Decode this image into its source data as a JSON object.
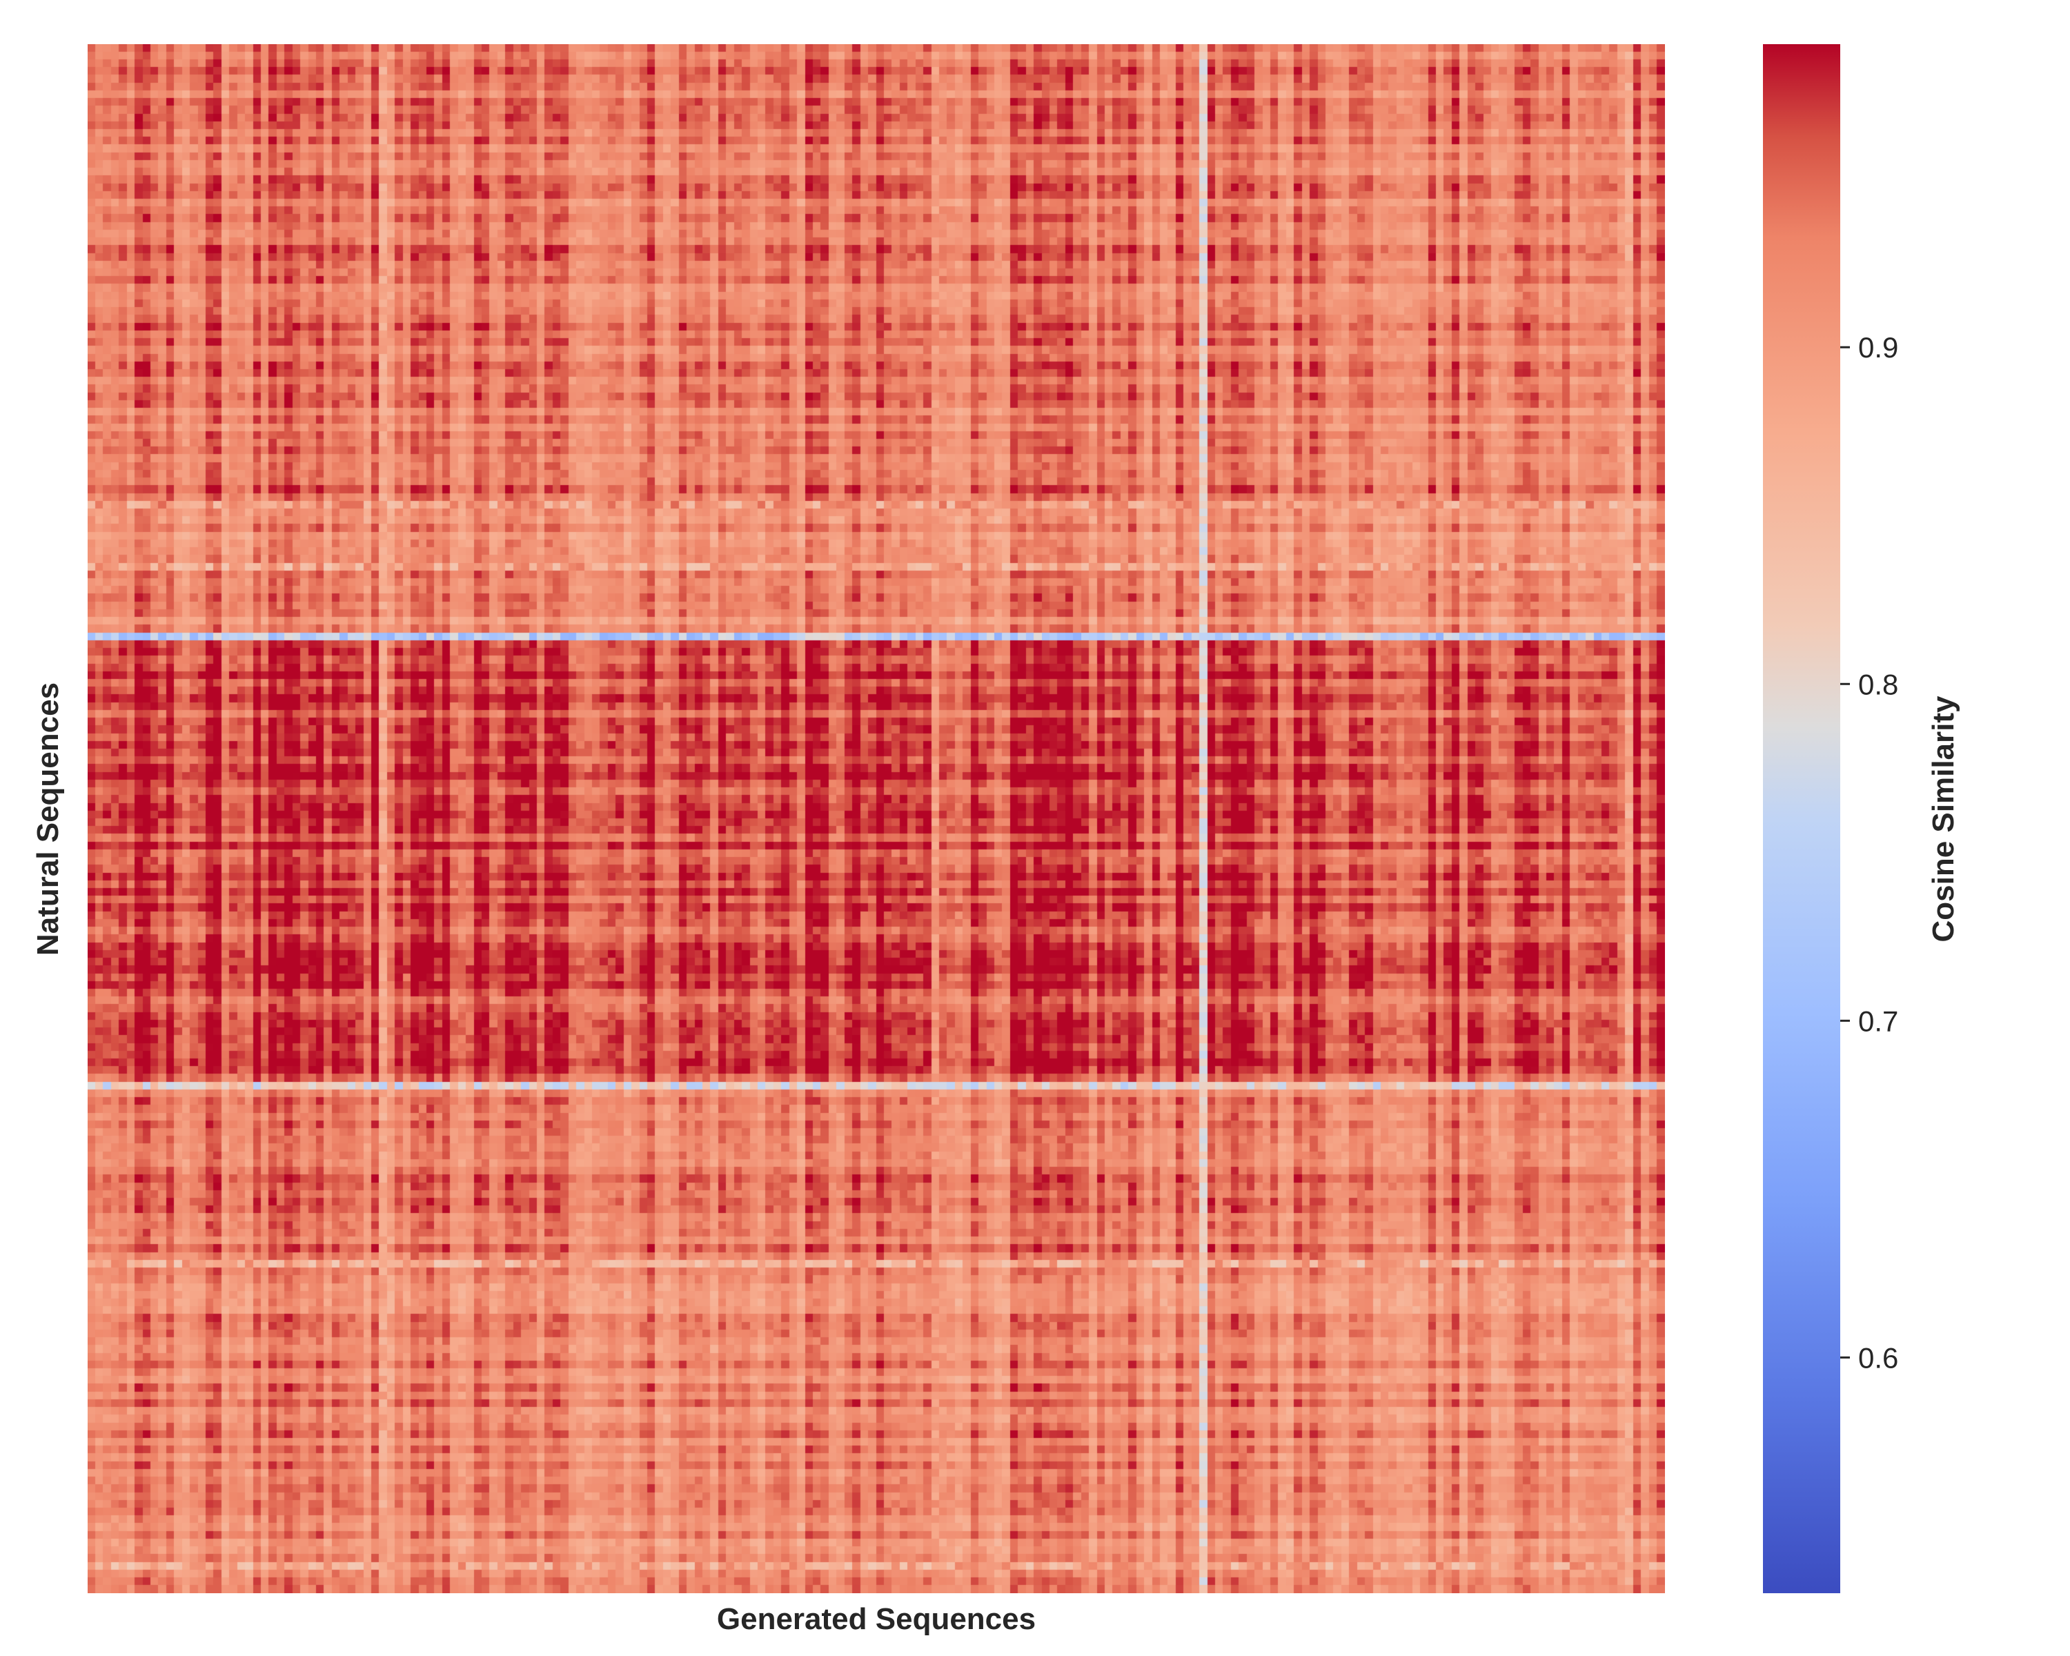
{
  "chart_data": {
    "type": "heatmap",
    "title": "",
    "xlabel": "Generated Sequences",
    "ylabel": "Natural Sequences",
    "colorbar": {
      "label": "Cosine Similarity",
      "range": [
        0.53,
        0.99
      ],
      "ticks": [
        0.6,
        0.7,
        0.8,
        0.9
      ],
      "colormap": "coolwarm",
      "color_low": "#3b4cc0",
      "color_mid": "#dddddd",
      "color_high": "#b40426"
    },
    "n_rows": 200,
    "n_cols": 200,
    "value_summary": {
      "typical_range": [
        0.85,
        0.99
      ],
      "row_bands": [
        {
          "rows": [
            0,
            60
          ],
          "level": 0.93
        },
        {
          "rows": [
            60,
            76
          ],
          "level": 0.92
        },
        {
          "rows": [
            76,
            134
          ],
          "level": 0.96
        },
        {
          "rows": [
            134,
            157
          ],
          "level": 0.93
        },
        {
          "rows": [
            157,
            200
          ],
          "level": 0.92
        }
      ],
      "low_similarity_rows": [
        {
          "row": 59,
          "mean": 0.89
        },
        {
          "row": 67,
          "mean": 0.88
        },
        {
          "row": 76,
          "mean": 0.74
        },
        {
          "row": 134,
          "mean": 0.8
        },
        {
          "row": 157,
          "mean": 0.87
        },
        {
          "row": 196,
          "mean": 0.88
        }
      ],
      "low_similarity_cols": [
        {
          "col": 37,
          "mean": 0.88
        },
        {
          "col": 107,
          "mean": 0.9
        },
        {
          "col": 141,
          "mean": 0.8
        },
        {
          "col": 195,
          "mean": 0.88
        }
      ]
    }
  }
}
